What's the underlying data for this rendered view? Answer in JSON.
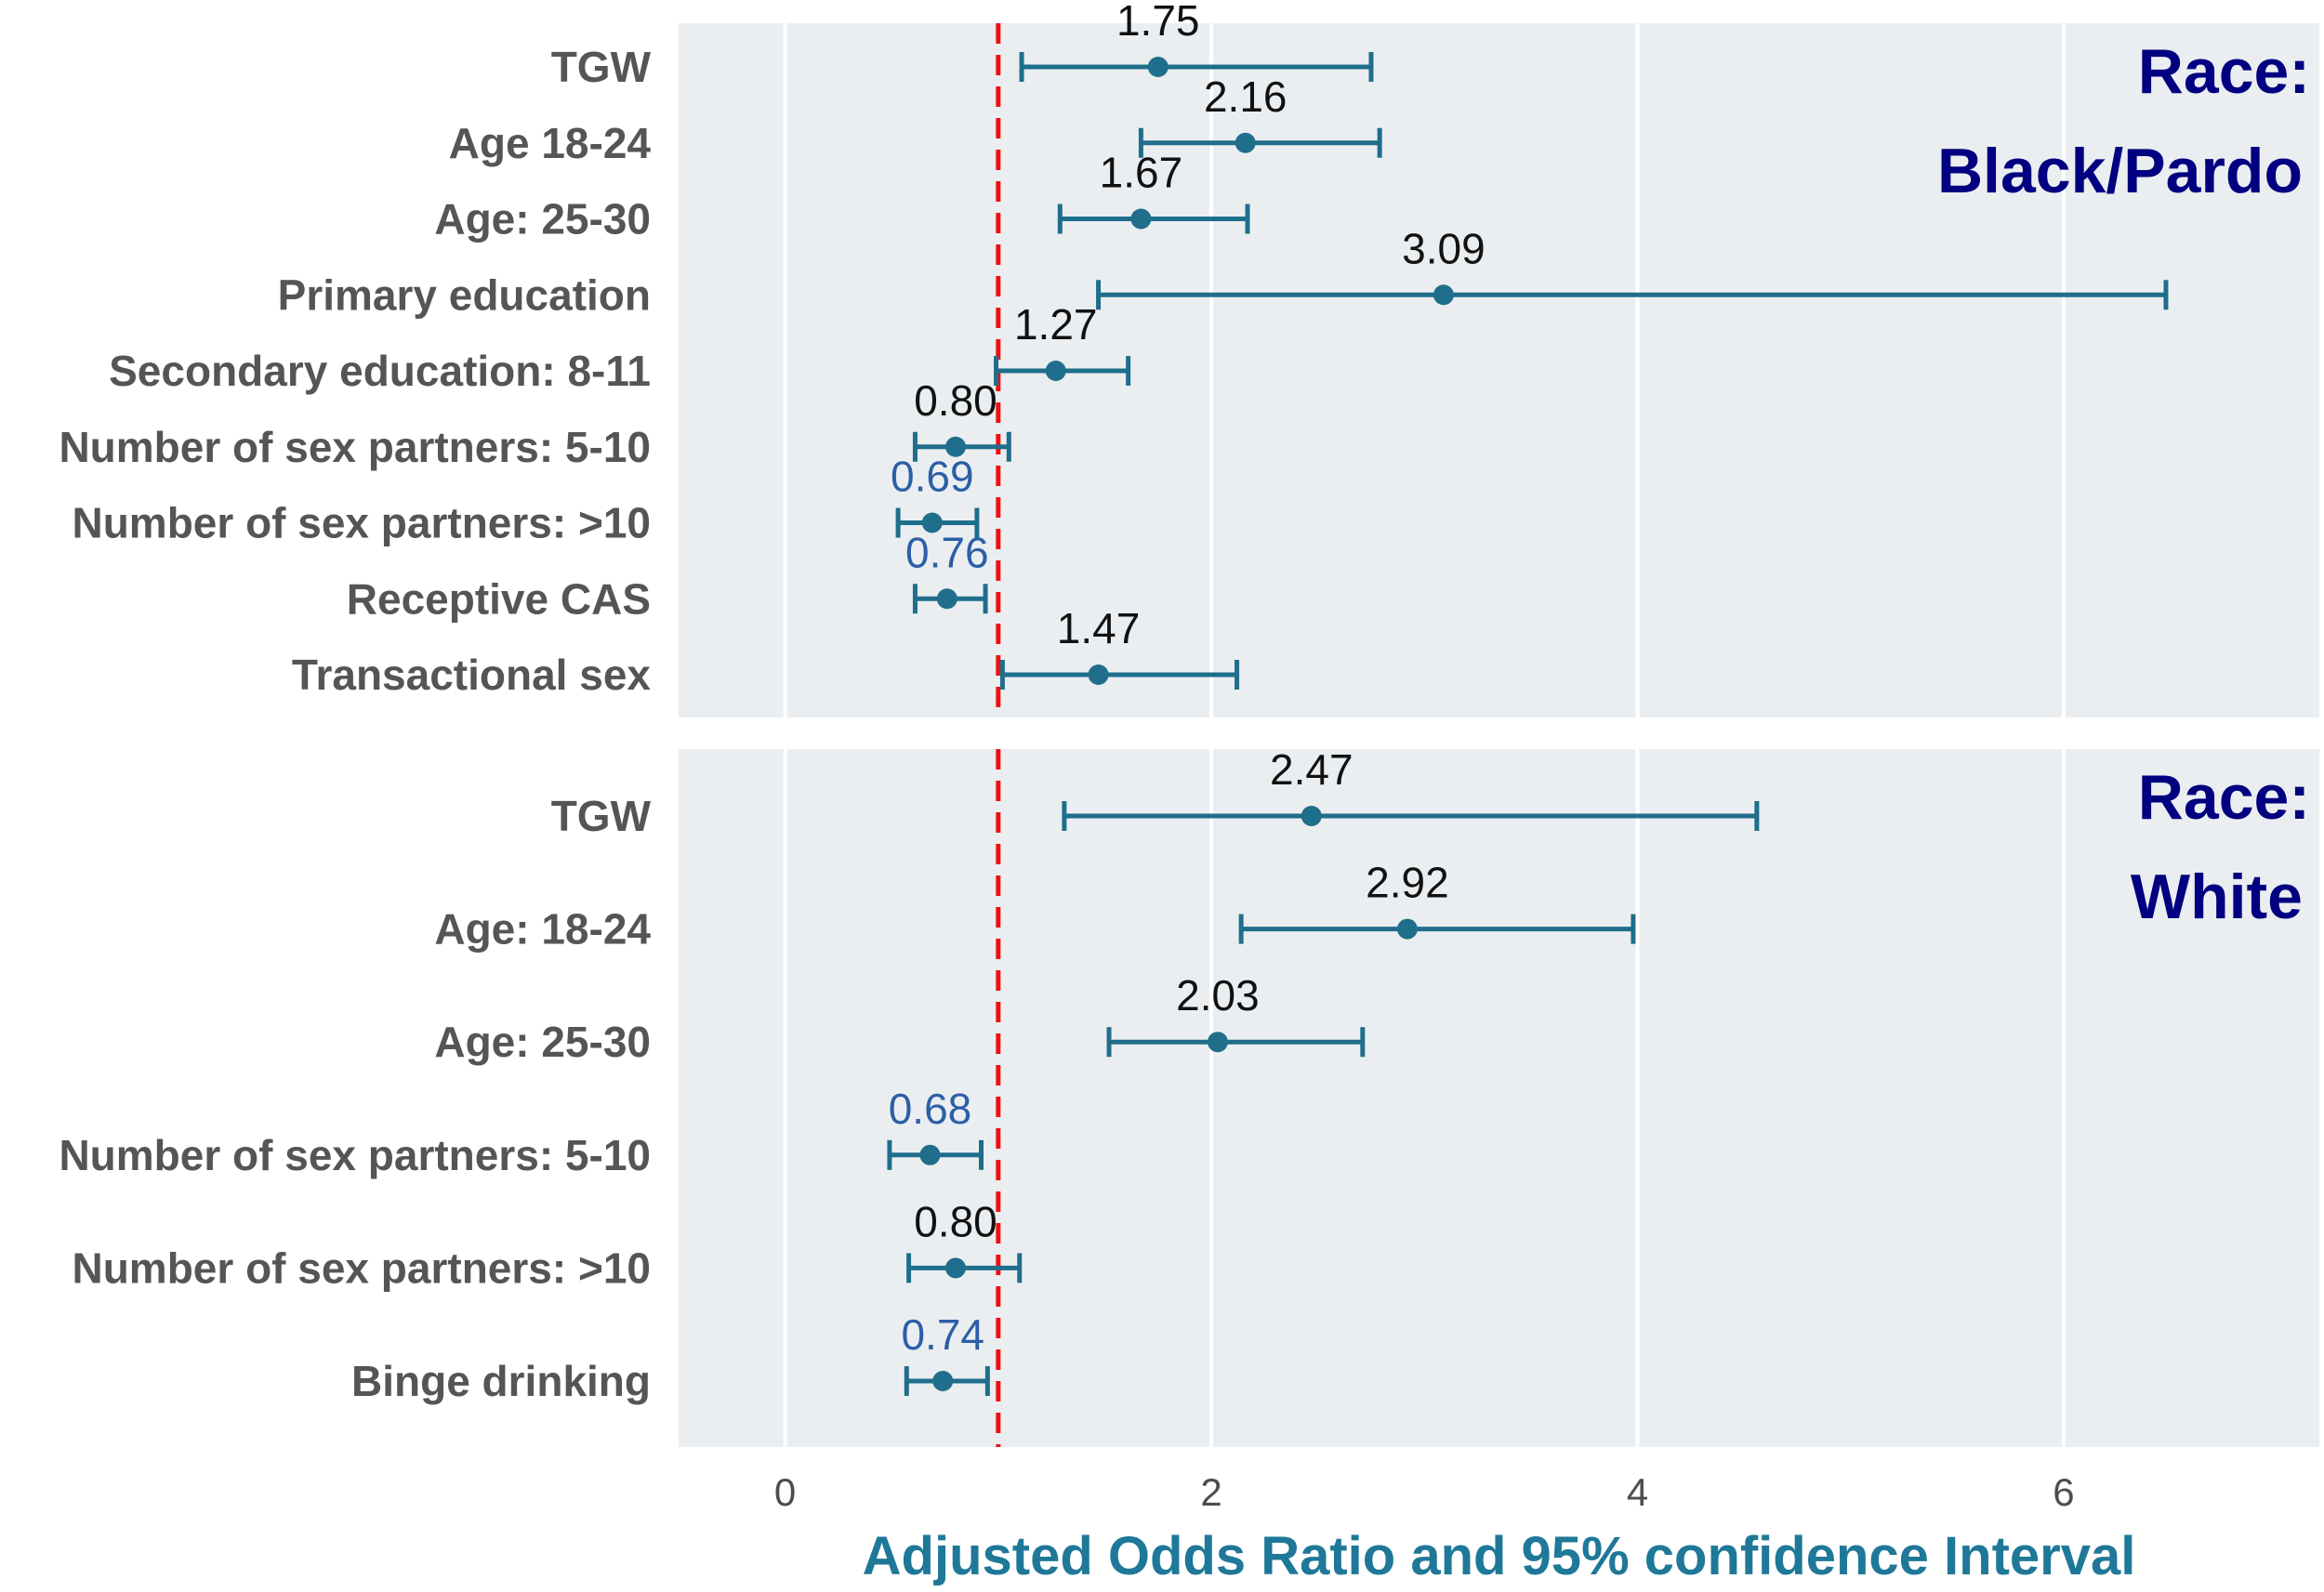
{
  "chart_data": {
    "type": "forest",
    "xlabel": "Adjusted Odds Ratio and 95% confidence Interval",
    "xlim": [
      -0.5,
      7.2
    ],
    "xticks": [
      0,
      2,
      4,
      6
    ],
    "xtick_labels": [
      "0",
      "2",
      "4",
      "6"
    ],
    "reference_line": 1,
    "grid": true,
    "panels": [
      {
        "label_line1": "Race:",
        "label_line2": "Black/Pardo",
        "rows": [
          {
            "label": "TGW",
            "estimate": 1.75,
            "est_label": "1.75",
            "lower": 1.11,
            "upper": 2.75,
            "protective": false
          },
          {
            "label": "Age 18-24",
            "estimate": 2.16,
            "est_label": "2.16",
            "lower": 1.67,
            "upper": 2.79,
            "protective": false
          },
          {
            "label": "Age: 25-30",
            "estimate": 1.67,
            "est_label": "1.67",
            "lower": 1.29,
            "upper": 2.17,
            "protective": false
          },
          {
            "label": "Primary education",
            "estimate": 3.09,
            "est_label": "3.09",
            "lower": 1.47,
            "upper": 6.48,
            "protective": false
          },
          {
            "label": "Secondary education: 8-11",
            "estimate": 1.27,
            "est_label": "1.27",
            "lower": 0.99,
            "upper": 1.61,
            "protective": false
          },
          {
            "label": "Number of sex partners: 5-10",
            "estimate": 0.8,
            "est_label": "0.80",
            "lower": 0.61,
            "upper": 1.05,
            "protective": false
          },
          {
            "label": "Number of sex partners: >10",
            "estimate": 0.69,
            "est_label": "0.69",
            "lower": 0.53,
            "upper": 0.9,
            "protective": true
          },
          {
            "label": "Receptive CAS",
            "estimate": 0.76,
            "est_label": "0.76",
            "lower": 0.61,
            "upper": 0.94,
            "protective": true
          },
          {
            "label": "Transactional sex",
            "estimate": 1.47,
            "est_label": "1.47",
            "lower": 1.02,
            "upper": 2.12,
            "protective": false
          }
        ]
      },
      {
        "label_line1": "Race:",
        "label_line2": "White",
        "rows": [
          {
            "label": "TGW",
            "estimate": 2.47,
            "est_label": "2.47",
            "lower": 1.31,
            "upper": 4.56,
            "protective": false
          },
          {
            "label": "Age: 18-24",
            "estimate": 2.92,
            "est_label": "2.92",
            "lower": 2.14,
            "upper": 3.98,
            "protective": false
          },
          {
            "label": "Age: 25-30",
            "estimate": 2.03,
            "est_label": "2.03",
            "lower": 1.52,
            "upper": 2.71,
            "protective": false
          },
          {
            "label": "Number of sex partners: 5-10",
            "estimate": 0.68,
            "est_label": "0.68",
            "lower": 0.49,
            "upper": 0.92,
            "protective": true
          },
          {
            "label": "Number of sex partners: >10",
            "estimate": 0.8,
            "est_label": "0.80",
            "lower": 0.58,
            "upper": 1.1,
            "protective": false
          },
          {
            "label": "Binge drinking",
            "estimate": 0.74,
            "est_label": "0.74",
            "lower": 0.57,
            "upper": 0.95,
            "protective": true
          }
        ]
      }
    ]
  },
  "colors": {
    "panel_bg": "#EBEEF0",
    "grid": "#FFFFFF",
    "point": "#1F6E8C",
    "reference_line": "#EE1111",
    "estimate_text": "#111111",
    "protective_text": "#2B5FA6",
    "row_label": "#555555",
    "strip_label": "#000080",
    "axis_title": "#1F7898"
  }
}
